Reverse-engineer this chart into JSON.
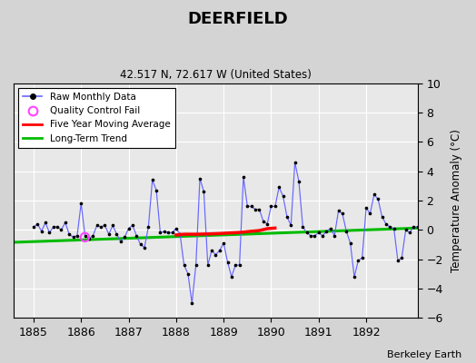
{
  "title": "DEERFIELD",
  "subtitle": "42.517 N, 72.617 W (United States)",
  "credit": "Berkeley Earth",
  "ylabel": "Temperature Anomaly (°C)",
  "xlim": [
    1884.58,
    1893.08
  ],
  "ylim": [
    -6,
    10
  ],
  "yticks": [
    -6,
    -4,
    -2,
    0,
    2,
    4,
    6,
    8,
    10
  ],
  "xticks": [
    1885,
    1886,
    1887,
    1888,
    1889,
    1890,
    1891,
    1892
  ],
  "bg_color": "#e8e8e8",
  "fig_color": "#d4d4d4",
  "raw_color": "#6666ff",
  "marker_color": "#000000",
  "qc_color": "#ff44ff",
  "ma_color": "#ff0000",
  "trend_color": "#00bb00",
  "raw_monthly": [
    0.2,
    0.4,
    -0.1,
    0.5,
    -0.2,
    0.2,
    0.2,
    0.0,
    0.5,
    -0.3,
    -0.5,
    -0.4,
    1.8,
    -0.4,
    -0.6,
    -0.4,
    0.3,
    0.2,
    0.3,
    -0.3,
    0.3,
    -0.3,
    -0.8,
    -0.5,
    0.1,
    0.3,
    -0.4,
    -1.0,
    -1.2,
    0.2,
    3.4,
    2.7,
    -0.2,
    -0.1,
    -0.2,
    -0.2,
    0.1,
    -0.3,
    -2.4,
    -3.0,
    -5.0,
    -2.4,
    3.5,
    2.6,
    -2.4,
    -1.4,
    -1.7,
    -1.4,
    -0.9,
    -2.2,
    -3.2,
    -2.4,
    -2.4,
    3.6,
    1.6,
    1.6,
    1.4,
    1.4,
    0.6,
    0.4,
    1.6,
    1.6,
    2.9,
    2.3,
    0.9,
    0.3,
    4.6,
    3.3,
    0.2,
    -0.2,
    -0.4,
    -0.4,
    -0.2,
    -0.4,
    -0.1,
    0.1,
    -0.4,
    1.3,
    1.1,
    -0.1,
    -0.9,
    -3.2,
    -2.1,
    -1.9,
    1.5,
    1.1,
    2.4,
    2.1,
    0.9,
    0.4,
    0.2,
    0.1,
    -2.1,
    -1.9,
    0.0,
    -0.2,
    0.2,
    0.2
  ],
  "ma_x": [
    1888.0,
    1888.17,
    1888.42,
    1888.67,
    1888.92,
    1889.08,
    1889.33,
    1889.58,
    1889.75,
    1889.92,
    1890.08
  ],
  "ma_y": [
    -0.35,
    -0.3,
    -0.3,
    -0.28,
    -0.25,
    -0.22,
    -0.18,
    -0.1,
    -0.05,
    0.08,
    0.12
  ],
  "trend_x": [
    1884.58,
    1893.08
  ],
  "trend_y": [
    -0.85,
    0.12
  ],
  "qc_x": [
    1886.08
  ],
  "qc_y": [
    -0.5
  ]
}
